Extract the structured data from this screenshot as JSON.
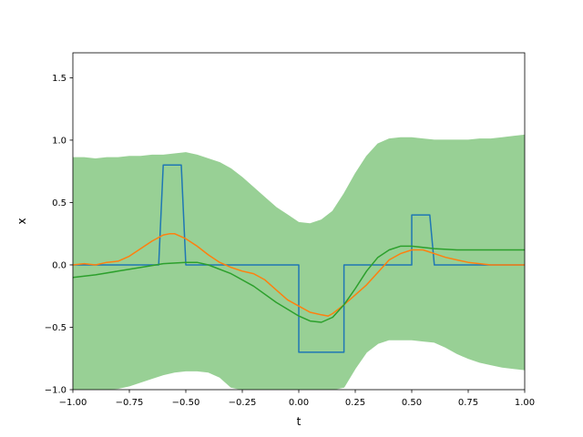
{
  "chart_data": {
    "type": "line",
    "title": "",
    "xlabel": "t",
    "ylabel": "x",
    "xlim": [
      -1.0,
      1.0
    ],
    "ylim": [
      -1.0,
      1.7
    ],
    "grid": false,
    "xticks": [
      -1.0,
      -0.75,
      -0.5,
      -0.25,
      0.0,
      0.25,
      0.5,
      0.75,
      1.0
    ],
    "xtick_labels": [
      "−1.00",
      "−0.75",
      "−0.50",
      "−0.25",
      "0.00",
      "0.25",
      "0.50",
      "0.75",
      "1.00"
    ],
    "yticks": [
      -1.0,
      -0.5,
      0.0,
      0.5,
      1.0,
      1.5
    ],
    "ytick_labels": [
      "−1.0",
      "−0.5",
      "0.0",
      "0.5",
      "1.0",
      "1.5"
    ],
    "colors": {
      "blue": "#1f77b4",
      "orange": "#ff7f0e",
      "green": "#2ca02c",
      "band": "#98d095"
    },
    "series": [
      {
        "kind": "line",
        "color": "#1f77b4",
        "x": [
          -1.0,
          -0.62,
          -0.6,
          -0.52,
          -0.5,
          0.0,
          0.0,
          0.2,
          0.2,
          0.5,
          0.5,
          0.58,
          0.6,
          1.0
        ],
        "y": [
          0.0,
          0.0,
          0.8,
          0.8,
          0.0,
          0.0,
          -0.7,
          -0.7,
          0.0,
          0.0,
          0.4,
          0.4,
          0.0,
          0.0
        ]
      },
      {
        "kind": "line",
        "color": "#ff7f0e",
        "x": [
          -1.0,
          -0.95,
          -0.9,
          -0.85,
          -0.8,
          -0.75,
          -0.7,
          -0.65,
          -0.6,
          -0.57,
          -0.55,
          -0.5,
          -0.45,
          -0.4,
          -0.35,
          -0.3,
          -0.25,
          -0.2,
          -0.15,
          -0.1,
          -0.05,
          0.0,
          0.05,
          0.1,
          0.13,
          0.15,
          0.2,
          0.25,
          0.3,
          0.35,
          0.4,
          0.45,
          0.5,
          0.55,
          0.6,
          0.65,
          0.7,
          0.75,
          0.8,
          0.85,
          0.9,
          0.95,
          1.0
        ],
        "y": [
          0.0,
          0.01,
          0.0,
          0.02,
          0.03,
          0.07,
          0.13,
          0.19,
          0.24,
          0.25,
          0.25,
          0.21,
          0.15,
          0.08,
          0.02,
          -0.02,
          -0.05,
          -0.07,
          -0.12,
          -0.2,
          -0.28,
          -0.33,
          -0.38,
          -0.4,
          -0.41,
          -0.39,
          -0.32,
          -0.24,
          -0.16,
          -0.06,
          0.04,
          0.09,
          0.12,
          0.12,
          0.09,
          0.06,
          0.04,
          0.02,
          0.01,
          0.0,
          0.0,
          0.0,
          0.0
        ]
      },
      {
        "kind": "line",
        "color": "#2ca02c",
        "x": [
          -1.0,
          -0.9,
          -0.8,
          -0.7,
          -0.6,
          -0.5,
          -0.45,
          -0.4,
          -0.3,
          -0.2,
          -0.1,
          0.0,
          0.05,
          0.1,
          0.15,
          0.2,
          0.25,
          0.3,
          0.35,
          0.4,
          0.45,
          0.5,
          0.55,
          0.6,
          0.7,
          0.8,
          0.9,
          1.0
        ],
        "y": [
          -0.1,
          -0.08,
          -0.05,
          -0.02,
          0.01,
          0.02,
          0.02,
          0.0,
          -0.07,
          -0.17,
          -0.3,
          -0.41,
          -0.45,
          -0.46,
          -0.42,
          -0.32,
          -0.19,
          -0.05,
          0.06,
          0.12,
          0.15,
          0.15,
          0.14,
          0.13,
          0.12,
          0.12,
          0.12,
          0.12
        ]
      }
    ],
    "band": {
      "color": "#98d095",
      "x": [
        -1.0,
        -0.95,
        -0.9,
        -0.85,
        -0.8,
        -0.75,
        -0.7,
        -0.65,
        -0.6,
        -0.55,
        -0.5,
        -0.45,
        -0.4,
        -0.35,
        -0.3,
        -0.25,
        -0.2,
        -0.15,
        -0.1,
        -0.05,
        0.0,
        0.05,
        0.1,
        0.15,
        0.2,
        0.25,
        0.3,
        0.35,
        0.4,
        0.45,
        0.5,
        0.55,
        0.6,
        0.65,
        0.7,
        0.75,
        0.8,
        0.85,
        0.9,
        0.95,
        1.0
      ],
      "upper": [
        0.86,
        0.86,
        0.85,
        0.86,
        0.86,
        0.87,
        0.87,
        0.88,
        0.88,
        0.89,
        0.9,
        0.88,
        0.85,
        0.82,
        0.77,
        0.7,
        0.62,
        0.54,
        0.46,
        0.4,
        0.34,
        0.33,
        0.36,
        0.43,
        0.57,
        0.73,
        0.87,
        0.97,
        1.01,
        1.02,
        1.02,
        1.01,
        1.0,
        1.0,
        1.0,
        1.0,
        1.01,
        1.01,
        1.02,
        1.03,
        1.04
      ],
      "lower": [
        -1.0,
        -1.0,
        -1.0,
        -1.0,
        -0.99,
        -0.97,
        -0.94,
        -0.91,
        -0.88,
        -0.86,
        -0.85,
        -0.85,
        -0.86,
        -0.9,
        -0.98,
        -1.0,
        -1.0,
        -1.0,
        -1.0,
        -1.0,
        -1.0,
        -1.0,
        -1.0,
        -1.0,
        -0.98,
        -0.83,
        -0.7,
        -0.63,
        -0.6,
        -0.6,
        -0.6,
        -0.61,
        -0.62,
        -0.66,
        -0.71,
        -0.75,
        -0.78,
        -0.8,
        -0.82,
        -0.83,
        -0.84
      ]
    }
  }
}
